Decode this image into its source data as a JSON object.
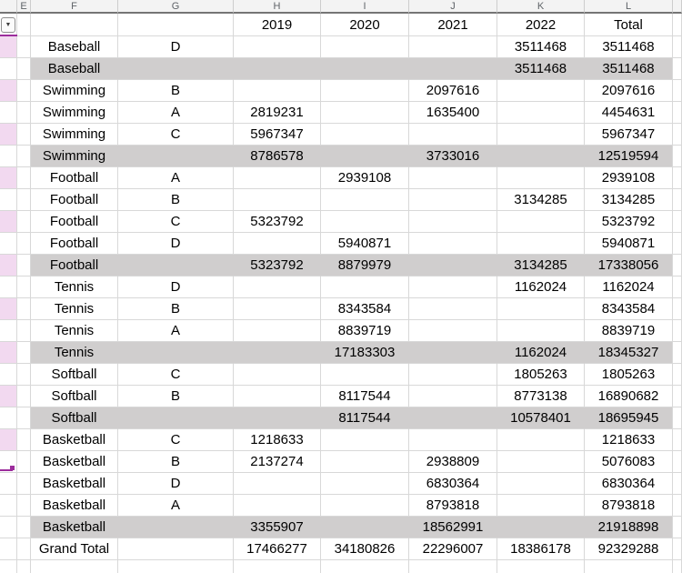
{
  "app": {
    "type": "spreadsheet-pivot-table"
  },
  "colors": {
    "banded_pink": "#f2d9f0",
    "subtotal_gray": "#d0cece",
    "gridline": "#d8d8d8",
    "header_bg": "#f3f3f3",
    "header_text": "#5f6368",
    "selection_purple": "#9c2d9c"
  },
  "column_letters": [
    "E",
    "F",
    "G",
    "H",
    "I",
    "J",
    "K",
    "L"
  ],
  "year_headers": [
    "2019",
    "2020",
    "2021",
    "2022",
    "Total"
  ],
  "filter_icon": "▼",
  "rows": [
    {
      "sport": "Baseball",
      "group": "D",
      "v2019": "",
      "v2020": "",
      "v2021": "",
      "v2022": "3511468",
      "total": "3511468",
      "kind": "detail",
      "banded": true
    },
    {
      "sport": "Baseball",
      "group": "",
      "v2019": "",
      "v2020": "",
      "v2021": "",
      "v2022": "3511468",
      "total": "3511468",
      "kind": "subtotal",
      "banded": false
    },
    {
      "sport": "Swimming",
      "group": "B",
      "v2019": "",
      "v2020": "",
      "v2021": "2097616",
      "v2022": "",
      "total": "2097616",
      "kind": "detail",
      "banded": true
    },
    {
      "sport": "Swimming",
      "group": "A",
      "v2019": "2819231",
      "v2020": "",
      "v2021": "1635400",
      "v2022": "",
      "total": "4454631",
      "kind": "detail",
      "banded": false
    },
    {
      "sport": "Swimming",
      "group": "C",
      "v2019": "5967347",
      "v2020": "",
      "v2021": "",
      "v2022": "",
      "total": "5967347",
      "kind": "detail",
      "banded": true
    },
    {
      "sport": "Swimming",
      "group": "",
      "v2019": "8786578",
      "v2020": "",
      "v2021": "3733016",
      "v2022": "",
      "total": "12519594",
      "kind": "subtotal",
      "banded": false
    },
    {
      "sport": "Football",
      "group": "A",
      "v2019": "",
      "v2020": "2939108",
      "v2021": "",
      "v2022": "",
      "total": "2939108",
      "kind": "detail",
      "banded": true
    },
    {
      "sport": "Football",
      "group": "B",
      "v2019": "",
      "v2020": "",
      "v2021": "",
      "v2022": "3134285",
      "total": "3134285",
      "kind": "detail",
      "banded": false
    },
    {
      "sport": "Football",
      "group": "C",
      "v2019": "5323792",
      "v2020": "",
      "v2021": "",
      "v2022": "",
      "total": "5323792",
      "kind": "detail",
      "banded": true
    },
    {
      "sport": "Football",
      "group": "D",
      "v2019": "",
      "v2020": "5940871",
      "v2021": "",
      "v2022": "",
      "total": "5940871",
      "kind": "detail",
      "banded": false
    },
    {
      "sport": "Football",
      "group": "",
      "v2019": "5323792",
      "v2020": "8879979",
      "v2021": "",
      "v2022": "3134285",
      "total": "17338056",
      "kind": "subtotal",
      "banded": true
    },
    {
      "sport": "Tennis",
      "group": "D",
      "v2019": "",
      "v2020": "",
      "v2021": "",
      "v2022": "1162024",
      "total": "1162024",
      "kind": "detail",
      "banded": false
    },
    {
      "sport": "Tennis",
      "group": "B",
      "v2019": "",
      "v2020": "8343584",
      "v2021": "",
      "v2022": "",
      "total": "8343584",
      "kind": "detail",
      "banded": true
    },
    {
      "sport": "Tennis",
      "group": "A",
      "v2019": "",
      "v2020": "8839719",
      "v2021": "",
      "v2022": "",
      "total": "8839719",
      "kind": "detail",
      "banded": false
    },
    {
      "sport": "Tennis",
      "group": "",
      "v2019": "",
      "v2020": "17183303",
      "v2021": "",
      "v2022": "1162024",
      "total": "18345327",
      "kind": "subtotal",
      "banded": true
    },
    {
      "sport": "Softball",
      "group": "C",
      "v2019": "",
      "v2020": "",
      "v2021": "",
      "v2022": "1805263",
      "total": "1805263",
      "kind": "detail",
      "banded": false
    },
    {
      "sport": "Softball",
      "group": "B",
      "v2019": "",
      "v2020": "8117544",
      "v2021": "",
      "v2022": "8773138",
      "total": "16890682",
      "kind": "detail",
      "banded": true
    },
    {
      "sport": "Softball",
      "group": "",
      "v2019": "",
      "v2020": "8117544",
      "v2021": "",
      "v2022": "10578401",
      "total": "18695945",
      "kind": "subtotal",
      "banded": false
    },
    {
      "sport": "Basketball",
      "group": "C",
      "v2019": "1218633",
      "v2020": "",
      "v2021": "",
      "v2022": "",
      "total": "1218633",
      "kind": "detail",
      "banded": true
    },
    {
      "sport": "Basketball",
      "group": "B",
      "v2019": "2137274",
      "v2020": "",
      "v2021": "2938809",
      "v2022": "",
      "total": "5076083",
      "kind": "detail",
      "banded": false
    },
    {
      "sport": "Basketball",
      "group": "D",
      "v2019": "",
      "v2020": "",
      "v2021": "6830364",
      "v2022": "",
      "total": "6830364",
      "kind": "detail",
      "banded": false
    },
    {
      "sport": "Basketball",
      "group": "A",
      "v2019": "",
      "v2020": "",
      "v2021": "8793818",
      "v2022": "",
      "total": "8793818",
      "kind": "detail",
      "banded": false
    },
    {
      "sport": "Basketball",
      "group": "",
      "v2019": "3355907",
      "v2020": "",
      "v2021": "18562991",
      "v2022": "",
      "total": "21918898",
      "kind": "subtotal",
      "banded": false
    },
    {
      "sport": "Grand Total",
      "group": "",
      "v2019": "17466277",
      "v2020": "34180826",
      "v2021": "22296007",
      "v2022": "18386178",
      "total": "92329288",
      "kind": "grand",
      "banded": false
    }
  ]
}
